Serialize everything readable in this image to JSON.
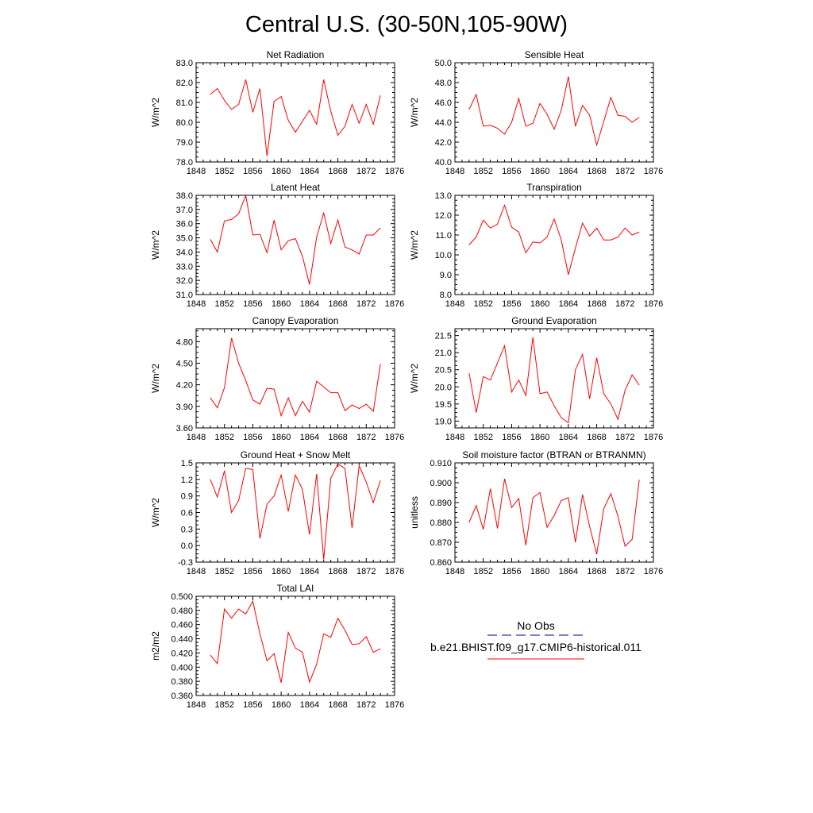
{
  "figure": {
    "title": "Central U.S. (30-50N,105-90W)",
    "line_color": "#ff0000",
    "obs_line_color": "#00007f",
    "legend": {
      "obs_label": "No Obs",
      "model_label": "b.e21.BHIST.f09_g17.CMIP6-historical.011"
    }
  },
  "chart_data": [
    {
      "type": "line",
      "title": "Net Radiation",
      "ylabel": "W/m^2",
      "xlim": [
        1848,
        1876
      ],
      "ylim": [
        78,
        83
      ],
      "xticks": [
        "1848",
        "1852",
        "1856",
        "1860",
        "1864",
        "1868",
        "1872",
        "1876"
      ],
      "yticks": [
        "78.0",
        "79.0",
        "80.0",
        "81.0",
        "82.0",
        "83.0"
      ],
      "x": [
        1850,
        1851,
        1852,
        1853,
        1854,
        1855,
        1856,
        1857,
        1858,
        1859,
        1860,
        1861,
        1862,
        1863,
        1864,
        1865,
        1866,
        1867,
        1868,
        1869,
        1870,
        1871,
        1872,
        1873,
        1874
      ],
      "values": [
        81.4,
        81.7,
        81.1,
        80.65,
        80.9,
        82.15,
        80.5,
        81.7,
        78.3,
        81.05,
        81.3,
        80.1,
        79.5,
        80.05,
        80.6,
        79.9,
        82.15,
        80.55,
        79.35,
        79.8,
        80.9,
        79.95,
        80.9,
        79.9,
        81.35
      ]
    },
    {
      "type": "line",
      "title": "Sensible Heat",
      "ylabel": "W/m^2",
      "xlim": [
        1848,
        1876
      ],
      "ylim": [
        40,
        50
      ],
      "xticks": [
        "1848",
        "1852",
        "1856",
        "1860",
        "1864",
        "1868",
        "1872",
        "1876"
      ],
      "yticks": [
        "40.0",
        "42.0",
        "44.0",
        "46.0",
        "48.0",
        "50.0"
      ],
      "x": [
        1850,
        1851,
        1852,
        1853,
        1854,
        1855,
        1856,
        1857,
        1858,
        1859,
        1860,
        1861,
        1862,
        1863,
        1864,
        1865,
        1866,
        1867,
        1868,
        1869,
        1870,
        1871,
        1872,
        1873,
        1874
      ],
      "values": [
        45.3,
        46.8,
        43.6,
        43.7,
        43.4,
        42.8,
        44.0,
        46.4,
        43.6,
        43.9,
        45.9,
        44.8,
        43.3,
        45.2,
        48.6,
        43.6,
        45.7,
        44.7,
        41.7,
        44.1,
        46.5,
        44.7,
        44.6,
        44.0,
        44.5
      ]
    },
    {
      "type": "line",
      "title": "Latent Heat",
      "ylabel": "W/m^2",
      "xlim": [
        1848,
        1876
      ],
      "ylim": [
        31,
        38
      ],
      "xticks": [
        "1848",
        "1852",
        "1856",
        "1860",
        "1864",
        "1868",
        "1872",
        "1876"
      ],
      "yticks": [
        "31.0",
        "32.0",
        "33.0",
        "34.0",
        "35.0",
        "36.0",
        "37.0",
        "38.0"
      ],
      "x": [
        1850,
        1851,
        1852,
        1853,
        1854,
        1855,
        1856,
        1857,
        1858,
        1859,
        1860,
        1861,
        1862,
        1863,
        1864,
        1865,
        1866,
        1867,
        1868,
        1869,
        1870,
        1871,
        1872,
        1873,
        1874
      ],
      "values": [
        34.9,
        34.0,
        36.2,
        36.3,
        36.7,
        38.0,
        35.2,
        35.25,
        33.95,
        36.25,
        34.15,
        34.8,
        34.95,
        33.7,
        31.7,
        35.05,
        36.75,
        34.6,
        36.25,
        34.35,
        34.15,
        33.85,
        35.2,
        35.2,
        35.7
      ]
    },
    {
      "type": "line",
      "title": "Transpiration",
      "ylabel": "W/m^2",
      "xlim": [
        1848,
        1876
      ],
      "ylim": [
        8,
        13
      ],
      "xticks": [
        "1848",
        "1852",
        "1856",
        "1860",
        "1864",
        "1868",
        "1872",
        "1876"
      ],
      "yticks": [
        "8.0",
        "9.0",
        "10.0",
        "11.0",
        "12.0",
        "13.0"
      ],
      "x": [
        1850,
        1851,
        1852,
        1853,
        1854,
        1855,
        1856,
        1857,
        1858,
        1859,
        1860,
        1861,
        1862,
        1863,
        1864,
        1865,
        1866,
        1867,
        1868,
        1869,
        1870,
        1871,
        1872,
        1873,
        1874
      ],
      "values": [
        10.5,
        10.9,
        11.75,
        11.35,
        11.55,
        12.5,
        11.4,
        11.15,
        10.1,
        10.65,
        10.6,
        10.9,
        11.8,
        10.75,
        9.0,
        10.35,
        11.6,
        10.95,
        11.35,
        10.75,
        10.75,
        10.9,
        11.35,
        11.0,
        11.15
      ]
    },
    {
      "type": "line",
      "title": "Canopy Evaporation",
      "ylabel": "W/m^2",
      "xlim": [
        1848,
        1876
      ],
      "ylim": [
        3.6,
        4.98
      ],
      "xticks": [
        "1848",
        "1852",
        "1856",
        "1860",
        "1864",
        "1868",
        "1872",
        "1876"
      ],
      "yticks": [
        "3.60",
        "3.90",
        "4.20",
        "4.50",
        "4.80"
      ],
      "x": [
        1850,
        1851,
        1852,
        1853,
        1854,
        1855,
        1856,
        1857,
        1858,
        1859,
        1860,
        1861,
        1862,
        1863,
        1864,
        1865,
        1866,
        1867,
        1868,
        1869,
        1870,
        1871,
        1872,
        1873,
        1874
      ],
      "values": [
        4.02,
        3.88,
        4.16,
        4.85,
        4.5,
        4.26,
        3.99,
        3.93,
        4.15,
        4.14,
        3.77,
        4.02,
        3.77,
        3.97,
        3.82,
        4.25,
        4.17,
        4.09,
        4.09,
        3.84,
        3.92,
        3.87,
        3.93,
        3.83,
        4.49
      ]
    },
    {
      "type": "line",
      "title": "Ground Evaporation",
      "ylabel": "W/m^2",
      "xlim": [
        1848,
        1876
      ],
      "ylim": [
        18.8,
        21.7
      ],
      "xticks": [
        "1848",
        "1852",
        "1856",
        "1860",
        "1864",
        "1868",
        "1872",
        "1876"
      ],
      "yticks": [
        "19.0",
        "19.5",
        "20.0",
        "20.5",
        "21.0",
        "21.5"
      ],
      "x": [
        1850,
        1851,
        1852,
        1853,
        1854,
        1855,
        1856,
        1857,
        1858,
        1859,
        1860,
        1861,
        1862,
        1863,
        1864,
        1865,
        1866,
        1867,
        1868,
        1869,
        1870,
        1871,
        1872,
        1873,
        1874
      ],
      "values": [
        20.4,
        19.25,
        20.3,
        20.2,
        20.7,
        21.2,
        19.85,
        20.2,
        19.75,
        21.45,
        19.8,
        19.85,
        19.45,
        19.1,
        18.95,
        20.5,
        20.95,
        19.65,
        20.85,
        19.8,
        19.5,
        19.05,
        19.9,
        20.35,
        20.05
      ]
    },
    {
      "type": "line",
      "title": "Ground Heat + Snow Melt",
      "ylabel": "W/m^2",
      "xlim": [
        1848,
        1876
      ],
      "ylim": [
        -0.3,
        1.5
      ],
      "xticks": [
        "1848",
        "1852",
        "1856",
        "1860",
        "1864",
        "1868",
        "1872",
        "1876"
      ],
      "yticks": [
        "-0.3",
        "0.0",
        "0.3",
        "0.6",
        "0.9",
        "1.2",
        "1.5"
      ],
      "x": [
        1850,
        1851,
        1852,
        1853,
        1854,
        1855,
        1856,
        1857,
        1858,
        1859,
        1860,
        1861,
        1862,
        1863,
        1864,
        1865,
        1866,
        1867,
        1868,
        1869,
        1870,
        1871,
        1872,
        1873,
        1874
      ],
      "values": [
        1.2,
        0.88,
        1.36,
        0.6,
        0.82,
        1.4,
        1.38,
        0.13,
        0.75,
        0.9,
        1.28,
        0.62,
        1.28,
        1.02,
        0.2,
        1.3,
        -0.25,
        1.22,
        1.48,
        1.4,
        0.32,
        1.45,
        1.15,
        0.78,
        1.18
      ]
    },
    {
      "type": "line",
      "title": "Soil moisture factor (BTRAN or BTRANMN)",
      "ylabel": "unitless",
      "xlim": [
        1848,
        1876
      ],
      "ylim": [
        0.86,
        0.91
      ],
      "xticks": [
        "1848",
        "1852",
        "1856",
        "1860",
        "1864",
        "1868",
        "1872",
        "1876"
      ],
      "yticks": [
        "0.860",
        "0.870",
        "0.880",
        "0.890",
        "0.900",
        "0.910"
      ],
      "x": [
        1850,
        1851,
        1852,
        1853,
        1854,
        1855,
        1856,
        1857,
        1858,
        1859,
        1860,
        1861,
        1862,
        1863,
        1864,
        1865,
        1866,
        1867,
        1868,
        1869,
        1870,
        1871,
        1872,
        1873,
        1874
      ],
      "values": [
        0.88,
        0.8885,
        0.8765,
        0.897,
        0.877,
        0.902,
        0.8875,
        0.892,
        0.8685,
        0.8925,
        0.895,
        0.8775,
        0.8835,
        0.891,
        0.8925,
        0.87,
        0.894,
        0.878,
        0.864,
        0.887,
        0.8945,
        0.883,
        0.868,
        0.8715,
        0.9015
      ]
    },
    {
      "type": "line",
      "title": "Total LAI",
      "ylabel": "m2/m2",
      "xlim": [
        1848,
        1876
      ],
      "ylim": [
        0.36,
        0.5
      ],
      "xticks": [
        "1848",
        "1852",
        "1856",
        "1860",
        "1864",
        "1868",
        "1872",
        "1876"
      ],
      "yticks": [
        "0.360",
        "0.380",
        "0.400",
        "0.420",
        "0.440",
        "0.460",
        "0.480",
        "0.500"
      ],
      "x": [
        1850,
        1851,
        1852,
        1853,
        1854,
        1855,
        1856,
        1857,
        1858,
        1859,
        1860,
        1861,
        1862,
        1863,
        1864,
        1865,
        1866,
        1867,
        1868,
        1869,
        1870,
        1871,
        1872,
        1873,
        1874
      ],
      "values": [
        0.417,
        0.405,
        0.482,
        0.469,
        0.482,
        0.475,
        0.493,
        0.447,
        0.409,
        0.419,
        0.378,
        0.449,
        0.427,
        0.421,
        0.379,
        0.404,
        0.447,
        0.442,
        0.469,
        0.452,
        0.432,
        0.433,
        0.443,
        0.421,
        0.426
      ]
    }
  ]
}
